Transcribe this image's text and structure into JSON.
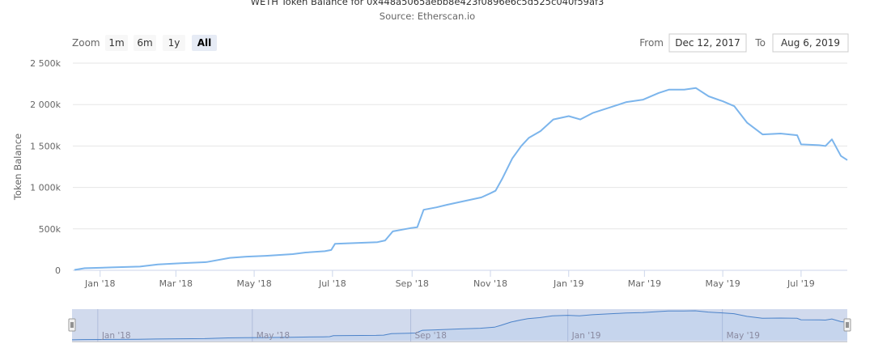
{
  "chart_data": {
    "type": "line",
    "title": "WETH Token Balance for 0x448a5065aebb8e423f0896e6c5d525c040f59af3",
    "subtitle": "Source: Etherscan.io",
    "ylabel": "Token Balance",
    "xlabel": "",
    "ylim": [
      0,
      2500000
    ],
    "y_ticks": [
      0,
      500000,
      1000000,
      1500000,
      2000000,
      2500000
    ],
    "y_tick_labels": [
      "0",
      "500k",
      "1 000k",
      "1 500k",
      "2 000k",
      "2 500k"
    ],
    "xlim": [
      "2017-12-12",
      "2019-08-06"
    ],
    "x_ticks": [
      "2018-01-01",
      "2018-03-01",
      "2018-05-01",
      "2018-07-01",
      "2018-09-01",
      "2018-11-01",
      "2019-01-01",
      "2019-03-01",
      "2019-05-01",
      "2019-07-01"
    ],
    "x_tick_labels": [
      "Jan '18",
      "Mar '18",
      "May '18",
      "Jul '18",
      "Sep '18",
      "Nov '18",
      "Jan '19",
      "Mar '19",
      "May '19",
      "Jul '19"
    ],
    "grid": true,
    "legend": "none",
    "line_color": "#7cb5ec",
    "series": [
      {
        "x": [
          "2017-12-12",
          "2017-12-20",
          "2018-01-10",
          "2018-02-01",
          "2018-02-15",
          "2018-03-05",
          "2018-03-25",
          "2018-04-12",
          "2018-04-25",
          "2018-05-10",
          "2018-05-31",
          "2018-06-10",
          "2018-06-25",
          "2018-06-30",
          "2018-07-03",
          "2018-08-05",
          "2018-08-11",
          "2018-08-17",
          "2018-08-31",
          "2018-09-05",
          "2018-09-10",
          "2018-09-20",
          "2018-09-28",
          "2018-10-10",
          "2018-10-25",
          "2018-11-01",
          "2018-11-05",
          "2018-11-10",
          "2018-11-18",
          "2018-11-25",
          "2018-12-01",
          "2018-12-10",
          "2018-12-20",
          "2019-01-01",
          "2019-01-10",
          "2019-01-20",
          "2019-02-01",
          "2019-02-15",
          "2019-02-28",
          "2019-03-12",
          "2019-03-20",
          "2019-04-01",
          "2019-04-10",
          "2019-04-20",
          "2019-05-01",
          "2019-05-10",
          "2019-05-20",
          "2019-06-01",
          "2019-06-15",
          "2019-06-28",
          "2019-07-01",
          "2019-07-15",
          "2019-07-20",
          "2019-07-25",
          "2019-08-01",
          "2019-08-06"
        ],
        "y": [
          5000,
          25000,
          35000,
          45000,
          70000,
          85000,
          100000,
          150000,
          165000,
          175000,
          195000,
          215000,
          230000,
          245000,
          320000,
          340000,
          360000,
          470000,
          510000,
          520000,
          730000,
          760000,
          790000,
          830000,
          880000,
          930000,
          960000,
          1100000,
          1350000,
          1500000,
          1600000,
          1680000,
          1820000,
          1860000,
          1820000,
          1900000,
          1960000,
          2030000,
          2060000,
          2140000,
          2180000,
          2180000,
          2200000,
          2100000,
          2040000,
          1980000,
          1780000,
          1640000,
          1650000,
          1630000,
          1520000,
          1510000,
          1500000,
          1580000,
          1380000,
          1330000
        ]
      }
    ]
  },
  "zoom": {
    "label": "Zoom",
    "buttons": [
      "1m",
      "6m",
      "1y",
      "All"
    ],
    "active": "All"
  },
  "range": {
    "from_label": "From",
    "from_value": "Dec 12, 2017",
    "to_label": "To",
    "to_value": "Aug 6, 2019"
  },
  "navigator": {
    "labels": [
      "Jan '18",
      "May '18",
      "Sep '18",
      "Jan '19",
      "May '19"
    ],
    "label_dates": [
      "2018-01-01",
      "2018-05-01",
      "2018-09-01",
      "2019-01-01",
      "2019-05-01"
    ]
  }
}
